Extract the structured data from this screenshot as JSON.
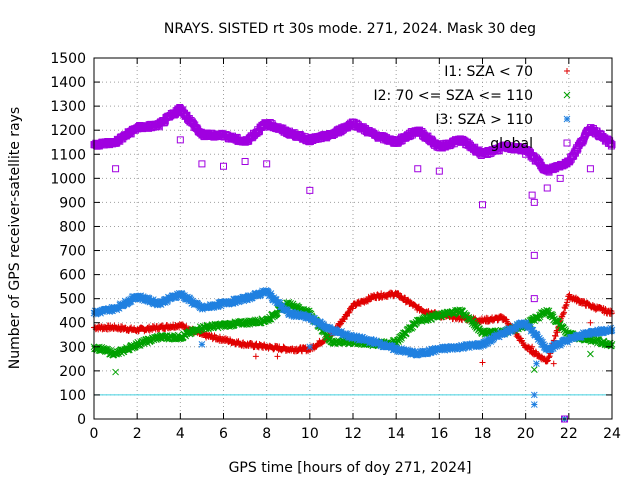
{
  "chart_data": {
    "type": "scatter",
    "title": "NRAYS. SISTED rt 30s mode. 271, 2024. Mask 30 deg",
    "xlabel": "GPS time [hours of doy 271, 2024]",
    "ylabel": "Number of GPS receiver-satellite rays",
    "xlim": [
      0,
      24
    ],
    "ylim": [
      0,
      1500
    ],
    "x_ticks": [
      0,
      2,
      4,
      6,
      8,
      10,
      12,
      14,
      16,
      18,
      20,
      22,
      24
    ],
    "y_ticks": [
      0,
      100,
      200,
      300,
      400,
      500,
      600,
      700,
      800,
      900,
      1000,
      1100,
      1200,
      1300,
      1400,
      1500
    ],
    "grid": true,
    "legend_position": "top-right",
    "reference_line": {
      "y": 100,
      "color": "#40d0e0"
    },
    "series": [
      {
        "name": "I1: SZA < 70",
        "marker": "+",
        "color": "#e00000",
        "x": [
          0,
          1,
          2,
          3,
          4,
          5,
          6,
          7,
          8,
          9,
          10,
          11,
          12,
          13,
          14,
          15,
          16,
          17,
          18,
          19,
          20,
          21,
          22,
          23,
          24
        ],
        "y": [
          380,
          380,
          370,
          380,
          390,
          350,
          330,
          310,
          300,
          290,
          290,
          350,
          470,
          510,
          520,
          460,
          430,
          420,
          410,
          420,
          300,
          240,
          510,
          470,
          440
        ],
        "outliers": [
          [
            7.5,
            260
          ],
          [
            8.5,
            260
          ],
          [
            18,
            235
          ],
          [
            20.3,
            300
          ],
          [
            21.3,
            230
          ],
          [
            23,
            400
          ]
        ]
      },
      {
        "name": "I2: 70 <= SZA <= 110",
        "marker": "x",
        "color": "#00a000",
        "x": [
          0,
          1,
          2,
          3,
          4,
          5,
          6,
          7,
          8,
          9,
          10,
          11,
          12,
          13,
          14,
          15,
          16,
          17,
          18,
          19,
          20,
          21,
          22,
          23,
          24
        ],
        "y": [
          300,
          270,
          310,
          340,
          340,
          380,
          390,
          400,
          410,
          480,
          440,
          320,
          320,
          310,
          320,
          410,
          430,
          450,
          360,
          360,
          390,
          450,
          350,
          330,
          310
        ],
        "outliers": [
          [
            1,
            195
          ],
          [
            20.4,
            205
          ],
          [
            21.8,
            0
          ],
          [
            23,
            270
          ]
        ]
      },
      {
        "name": "I3: SZA > 110",
        "marker": "*",
        "color": "#2080e0",
        "x": [
          0,
          1,
          2,
          3,
          4,
          5,
          6,
          7,
          8,
          9,
          10,
          11,
          12,
          13,
          14,
          15,
          16,
          17,
          18,
          19,
          20,
          21,
          22,
          23,
          24
        ],
        "y": [
          440,
          460,
          510,
          480,
          520,
          460,
          480,
          500,
          530,
          440,
          420,
          370,
          340,
          320,
          290,
          270,
          290,
          300,
          310,
          360,
          400,
          290,
          330,
          360,
          370
        ],
        "outliers": [
          [
            5,
            310
          ],
          [
            10,
            300
          ],
          [
            20.4,
            100
          ],
          [
            20.4,
            60
          ],
          [
            20.5,
            230
          ],
          [
            21.8,
            0
          ]
        ]
      },
      {
        "name": "global",
        "marker": "square",
        "color": "#a000e0",
        "x": [
          0,
          1,
          2,
          3,
          4,
          5,
          6,
          7,
          8,
          9,
          10,
          11,
          12,
          13,
          14,
          15,
          16,
          17,
          18,
          19,
          20,
          21,
          22,
          23,
          24
        ],
        "y": [
          1140,
          1150,
          1210,
          1220,
          1290,
          1180,
          1180,
          1150,
          1230,
          1190,
          1160,
          1180,
          1230,
          1180,
          1150,
          1200,
          1130,
          1160,
          1100,
          1130,
          1120,
          1030,
          1070,
          1210,
          1140
        ],
        "outliers": [
          [
            1,
            1040
          ],
          [
            4,
            1160
          ],
          [
            5,
            1060
          ],
          [
            6,
            1050
          ],
          [
            7,
            1070
          ],
          [
            8,
            1060
          ],
          [
            10,
            950
          ],
          [
            15,
            1040
          ],
          [
            16,
            1030
          ],
          [
            18,
            890
          ],
          [
            20,
            1100
          ],
          [
            20.3,
            930
          ],
          [
            20.4,
            900
          ],
          [
            20.4,
            680
          ],
          [
            20.4,
            500
          ],
          [
            21,
            960
          ],
          [
            21.6,
            1000
          ],
          [
            23,
            1040
          ],
          [
            21.8,
            0
          ]
        ]
      }
    ]
  }
}
